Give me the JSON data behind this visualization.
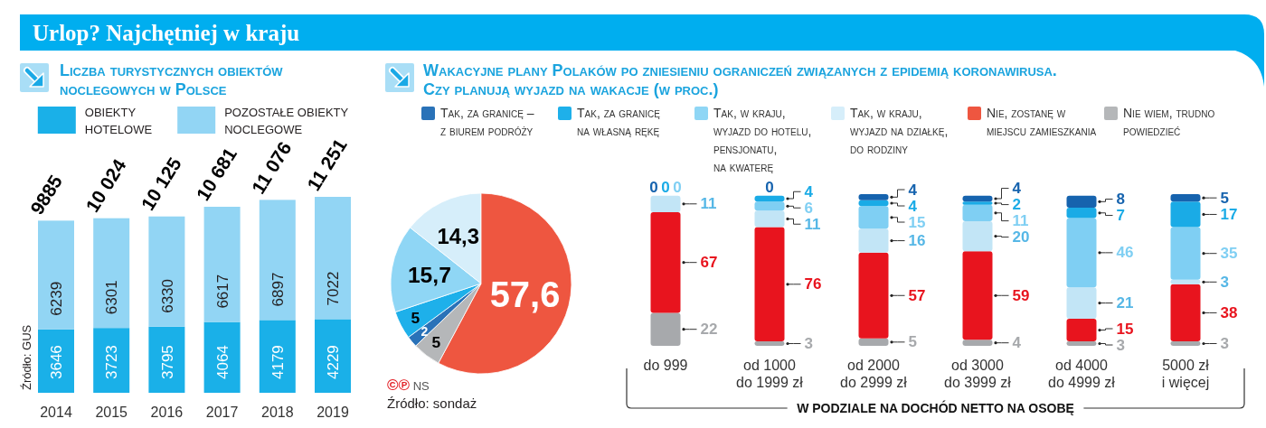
{
  "chart_data": [
    {
      "type": "other",
      "title": "Urlop? Najchętniej w kraju"
    },
    {
      "type": "bar",
      "title": "Liczba turystycznych obiektów noclegowych w Polsce",
      "categories": [
        "2014",
        "2015",
        "2016",
        "2017",
        "2018",
        "2019"
      ],
      "stacked": true,
      "series": [
        {
          "name": "OBIEKTY HOTELOWE",
          "color": "#1ab0e8",
          "values": [
            3646,
            3723,
            3795,
            4064,
            4179,
            4229
          ]
        },
        {
          "name": "POZOSTAŁE OBIEKTY NOCLEGOWE",
          "color": "#92d5f4",
          "values": [
            6239,
            6301,
            6330,
            6617,
            6897,
            7022
          ]
        }
      ],
      "totals": [
        "9885",
        "10 024",
        "10 125",
        "10 681",
        "11 076",
        "11 251"
      ],
      "data_labels": true,
      "legend": "top",
      "annotations": [
        "Źródło: GUS"
      ]
    },
    {
      "type": "pie",
      "title": "Wakacyjne plany Polaków po zniesieniu ograniczeń związanych z epidemią koronawirusa. Czy planują wyjazd na wakacje (w proc.)",
      "categories": [
        "Tak, za granicę – z biurem podróży",
        "Tak, za granicę na własną rękę",
        "Tak, w kraju, wyjazd do hotelu, pensjonatu, na kwaterę",
        "Tak, w kraju, wyjazd na działkę, do rodziny",
        "Nie, zostanę w miejscu zamieszkania",
        "Nie wiem, trudno powiedzieć"
      ],
      "values": [
        2,
        5,
        15.7,
        14.3,
        57.6,
        5
      ],
      "colors": [
        "#2a72b8",
        "#1eb0ea",
        "#8fd6f5",
        "#d6eefa",
        "#ee5640",
        "#b5b7b9"
      ],
      "value_labels": [
        "2",
        "5",
        "15,7",
        "14,3",
        "57,6",
        "5"
      ],
      "legend": "top right",
      "annotations": [
        "©℗ NS",
        "Źródło: sondaż"
      ]
    },
    {
      "type": "bar",
      "categories": [
        "do 999",
        "od 1000 do 1999 zł",
        "od 2000 do 2999 zł",
        "od 3000 do 3999 zł",
        "od 4000 do 4999 zł",
        "5000 zł i więcej"
      ],
      "stacked": true,
      "xlabel": "W PODZIALE NA DOCHÓD NETTO NA OSOBĘ",
      "series": [
        {
          "color": "#a7a9ac",
          "values": [
            22,
            3,
            5,
            4,
            3,
            3
          ]
        },
        {
          "color": "#e8141e",
          "values": [
            67,
            76,
            57,
            59,
            15,
            38
          ]
        },
        {
          "color": "#c2e5f6",
          "values": [
            11,
            11,
            16,
            20,
            21,
            3
          ]
        },
        {
          "color": "#7fcff3",
          "values": [
            0,
            6,
            15,
            11,
            46,
            35
          ]
        },
        {
          "color": "#1aabe6",
          "values": [
            0,
            4,
            4,
            2,
            7,
            17
          ]
        },
        {
          "color": "#1663ae",
          "values": [
            0,
            0,
            4,
            4,
            8,
            5
          ]
        }
      ],
      "data_labels": true
    }
  ]
}
